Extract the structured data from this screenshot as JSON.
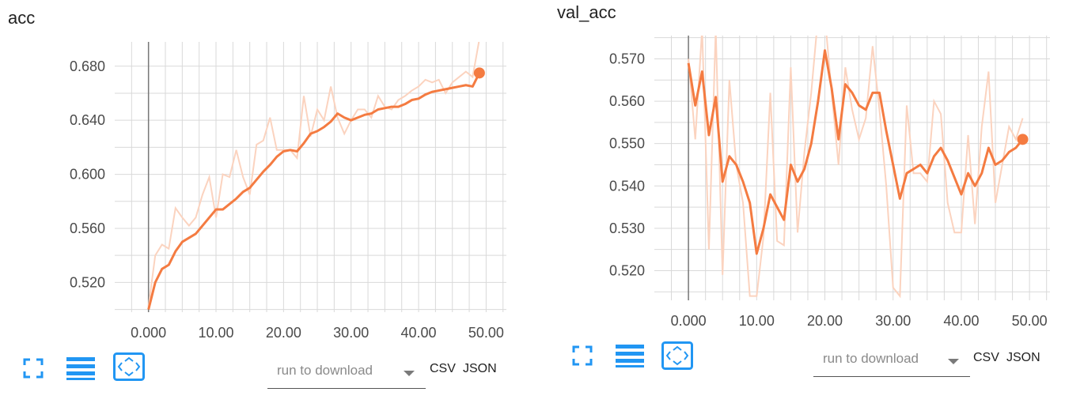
{
  "panels": [
    {
      "title": "acc",
      "download": {
        "placeholder": "run to download",
        "csv": "CSV",
        "json": "JSON"
      }
    },
    {
      "title": "val_acc",
      "download": {
        "placeholder": "run to download",
        "csv": "CSV",
        "json": "JSON"
      }
    }
  ],
  "icons": [
    "fullscreen-icon",
    "list-icon",
    "fit-domain-icon"
  ],
  "accent_color": "#f47b41",
  "raw_color": "#fbd3bf",
  "chart_data": [
    {
      "type": "line",
      "title": "acc",
      "xlabel": "",
      "ylabel": "",
      "xlim": [
        -5,
        53
      ],
      "ylim": [
        0.498,
        0.698
      ],
      "xticks": [
        0,
        10,
        20,
        30,
        40,
        50
      ],
      "xtick_labels": [
        "0.000",
        "10.00",
        "20.00",
        "30.00",
        "40.00",
        "50.00"
      ],
      "yticks": [
        0.52,
        0.56,
        0.6,
        0.64,
        0.68
      ],
      "ytick_labels": [
        "0.520",
        "0.560",
        "0.600",
        "0.640",
        "0.680"
      ],
      "grid": true,
      "series": [
        {
          "x": [
            0,
            1,
            2,
            3,
            4,
            5,
            6,
            7,
            8,
            9,
            10,
            11,
            12,
            13,
            14,
            15,
            16,
            17,
            18,
            19,
            20,
            21,
            22,
            23,
            24,
            25,
            26,
            27,
            28,
            29,
            30,
            31,
            32,
            33,
            34,
            35,
            36,
            37,
            38,
            39,
            40,
            41,
            42,
            43,
            44,
            45,
            46,
            47,
            48,
            49
          ],
          "values": [
            0.5,
            0.52,
            0.53,
            0.533,
            0.543,
            0.55,
            0.553,
            0.556,
            0.562,
            0.568,
            0.574,
            0.574,
            0.578,
            0.582,
            0.587,
            0.59,
            0.596,
            0.602,
            0.607,
            0.613,
            0.617,
            0.618,
            0.617,
            0.623,
            0.63,
            0.632,
            0.635,
            0.639,
            0.645,
            0.642,
            0.64,
            0.642,
            0.644,
            0.645,
            0.648,
            0.649,
            0.65,
            0.65,
            0.652,
            0.655,
            0.656,
            0.659,
            0.661,
            0.662,
            0.663,
            0.664,
            0.665,
            0.666,
            0.665,
            0.675
          ]
        },
        {
          "x": [
            0,
            1,
            2,
            3,
            4,
            5,
            6,
            7,
            8,
            9,
            10,
            11,
            12,
            13,
            14,
            15,
            16,
            17,
            18,
            19,
            20,
            21,
            22,
            23,
            24,
            25,
            26,
            27,
            28,
            29,
            30,
            31,
            32,
            33,
            34,
            35,
            36,
            37,
            38,
            39,
            40,
            41,
            42,
            43,
            44,
            45,
            46,
            47,
            48,
            49
          ],
          "values": [
            0.502,
            0.54,
            0.548,
            0.545,
            0.575,
            0.568,
            0.562,
            0.568,
            0.585,
            0.598,
            0.568,
            0.6,
            0.598,
            0.618,
            0.598,
            0.585,
            0.622,
            0.625,
            0.642,
            0.618,
            0.618,
            0.618,
            0.612,
            0.658,
            0.628,
            0.648,
            0.64,
            0.665,
            0.642,
            0.63,
            0.64,
            0.648,
            0.648,
            0.642,
            0.658,
            0.65,
            0.648,
            0.655,
            0.658,
            0.662,
            0.665,
            0.67,
            0.668,
            0.67,
            0.66,
            0.668,
            0.672,
            0.676,
            0.672,
            0.7
          ]
        }
      ]
    },
    {
      "type": "line",
      "title": "val_acc",
      "xlabel": "",
      "ylabel": "",
      "xlim": [
        -5,
        53
      ],
      "ylim": [
        0.513,
        0.5755
      ],
      "xticks": [
        0,
        10,
        20,
        30,
        40,
        50
      ],
      "xtick_labels": [
        "0.000",
        "10.00",
        "20.00",
        "30.00",
        "40.00",
        "50.00"
      ],
      "yticks": [
        0.52,
        0.53,
        0.54,
        0.55,
        0.56,
        0.57
      ],
      "ytick_labels": [
        "0.520",
        "0.530",
        "0.540",
        "0.550",
        "0.560",
        "0.570"
      ],
      "grid": true,
      "series": [
        {
          "x": [
            0,
            1,
            2,
            3,
            4,
            5,
            6,
            7,
            8,
            9,
            10,
            11,
            12,
            13,
            14,
            15,
            16,
            17,
            18,
            19,
            20,
            21,
            22,
            23,
            24,
            25,
            26,
            27,
            28,
            29,
            30,
            31,
            32,
            33,
            34,
            35,
            36,
            37,
            38,
            39,
            40,
            41,
            42,
            43,
            44,
            45,
            46,
            47,
            48,
            49
          ],
          "values": [
            0.569,
            0.559,
            0.567,
            0.552,
            0.561,
            0.541,
            0.547,
            0.545,
            0.541,
            0.536,
            0.524,
            0.53,
            0.538,
            0.535,
            0.532,
            0.545,
            0.541,
            0.544,
            0.55,
            0.56,
            0.572,
            0.563,
            0.551,
            0.564,
            0.562,
            0.559,
            0.558,
            0.562,
            0.562,
            0.553,
            0.545,
            0.537,
            0.543,
            0.544,
            0.545,
            0.543,
            0.547,
            0.549,
            0.546,
            0.542,
            0.538,
            0.543,
            0.54,
            0.543,
            0.549,
            0.545,
            0.546,
            0.548,
            0.549,
            0.551
          ]
        },
        {
          "x": [
            0,
            1,
            2,
            3,
            4,
            5,
            6,
            7,
            8,
            9,
            10,
            11,
            12,
            13,
            14,
            15,
            16,
            17,
            18,
            19,
            20,
            21,
            22,
            23,
            24,
            25,
            26,
            27,
            28,
            29,
            30,
            31,
            32,
            33,
            34,
            35,
            36,
            37,
            38,
            39,
            40,
            41,
            42,
            43,
            44,
            45,
            46,
            47,
            48,
            49
          ],
          "values": [
            0.57,
            0.551,
            0.577,
            0.525,
            0.577,
            0.519,
            0.565,
            0.545,
            0.536,
            0.514,
            0.514,
            0.528,
            0.562,
            0.527,
            0.526,
            0.568,
            0.529,
            0.548,
            0.562,
            0.58,
            0.58,
            0.562,
            0.545,
            0.568,
            0.558,
            0.551,
            0.556,
            0.573,
            0.558,
            0.54,
            0.516,
            0.514,
            0.559,
            0.543,
            0.543,
            0.541,
            0.56,
            0.557,
            0.536,
            0.529,
            0.529,
            0.552,
            0.531,
            0.554,
            0.567,
            0.536,
            0.545,
            0.554,
            0.551,
            0.556
          ]
        }
      ]
    }
  ]
}
